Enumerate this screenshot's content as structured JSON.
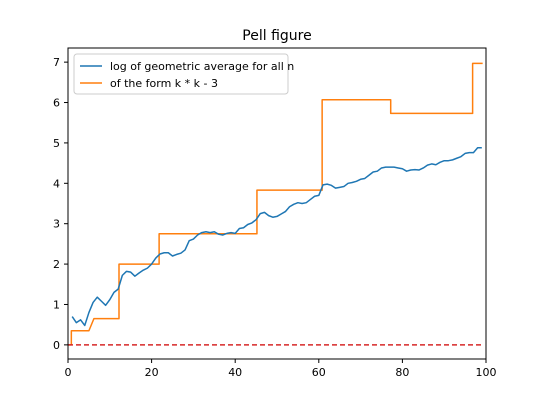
{
  "chart_data": {
    "type": "line",
    "title": "Pell figure",
    "xlabel": "",
    "ylabel": "",
    "xlim": [
      0,
      100
    ],
    "ylim": [
      -0.35,
      7.35
    ],
    "xticks": [
      0,
      20,
      40,
      60,
      80,
      100
    ],
    "yticks": [
      0,
      1,
      2,
      3,
      4,
      5,
      6,
      7
    ],
    "grid": false,
    "legend_position": "top-left",
    "series": [
      {
        "name": "log of geometric average for all n",
        "color": "#1f77b4",
        "style": "solid",
        "x": [
          1,
          2,
          3,
          4,
          5,
          6,
          7,
          8,
          9,
          10,
          11,
          12,
          13,
          14,
          15,
          16,
          17,
          18,
          19,
          20,
          21,
          22,
          23,
          24,
          25,
          26,
          27,
          28,
          29,
          30,
          31,
          32,
          33,
          34,
          35,
          36,
          37,
          38,
          39,
          40,
          41,
          42,
          43,
          44,
          45,
          46,
          47,
          48,
          49,
          50,
          51,
          52,
          53,
          54,
          55,
          56,
          57,
          58,
          59,
          60,
          61,
          62,
          63,
          64,
          65,
          66,
          67,
          68,
          69,
          70,
          71,
          72,
          73,
          74,
          75,
          76,
          77,
          78,
          79,
          80,
          81,
          82,
          83,
          84,
          85,
          86,
          87,
          88,
          89,
          90,
          91,
          92,
          93,
          94,
          95,
          96,
          97,
          98,
          99
        ],
        "y": [
          0.7,
          0.55,
          0.62,
          0.48,
          0.8,
          1.05,
          1.18,
          1.08,
          0.98,
          1.12,
          1.3,
          1.38,
          1.72,
          1.82,
          1.8,
          1.7,
          1.78,
          1.85,
          1.9,
          2.0,
          2.15,
          2.25,
          2.28,
          2.28,
          2.2,
          2.24,
          2.27,
          2.35,
          2.58,
          2.62,
          2.72,
          2.78,
          2.8,
          2.78,
          2.8,
          2.74,
          2.72,
          2.76,
          2.78,
          2.76,
          2.88,
          2.9,
          2.98,
          3.02,
          3.1,
          3.25,
          3.28,
          3.2,
          3.16,
          3.18,
          3.24,
          3.3,
          3.42,
          3.48,
          3.52,
          3.5,
          3.52,
          3.6,
          3.68,
          3.7,
          3.96,
          3.98,
          3.95,
          3.88,
          3.9,
          3.92,
          4.0,
          4.02,
          4.05,
          4.1,
          4.12,
          4.2,
          4.28,
          4.3,
          4.38,
          4.4,
          4.4,
          4.4,
          4.38,
          4.36,
          4.3,
          4.33,
          4.34,
          4.33,
          4.38,
          4.45,
          4.48,
          4.46,
          4.52,
          4.56,
          4.56,
          4.58,
          4.62,
          4.66,
          4.74,
          4.76,
          4.76,
          4.88,
          4.88
        ]
      },
      {
        "name": "of the form k * k - 3",
        "color": "#ff7f0e",
        "style": "steps",
        "x": [
          0,
          0.8,
          0.8,
          5,
          5,
          6.2,
          6.2,
          12.2,
          12.2,
          21.8,
          21.8,
          45.2,
          45.2,
          60.8,
          60.8,
          77.2,
          77.2,
          96.8,
          96.8,
          99.2
        ],
        "y": [
          0,
          0,
          0.35,
          0.35,
          0.35,
          0.65,
          0.65,
          0.65,
          2.0,
          2.0,
          2.75,
          2.75,
          3.83,
          3.83,
          6.07,
          6.07,
          5.73,
          5.73,
          6.97,
          6.97
        ]
      },
      {
        "name": "",
        "color": "#d62728",
        "style": "dashed",
        "x": [
          0,
          99.5
        ],
        "y": [
          0,
          0
        ]
      }
    ]
  }
}
